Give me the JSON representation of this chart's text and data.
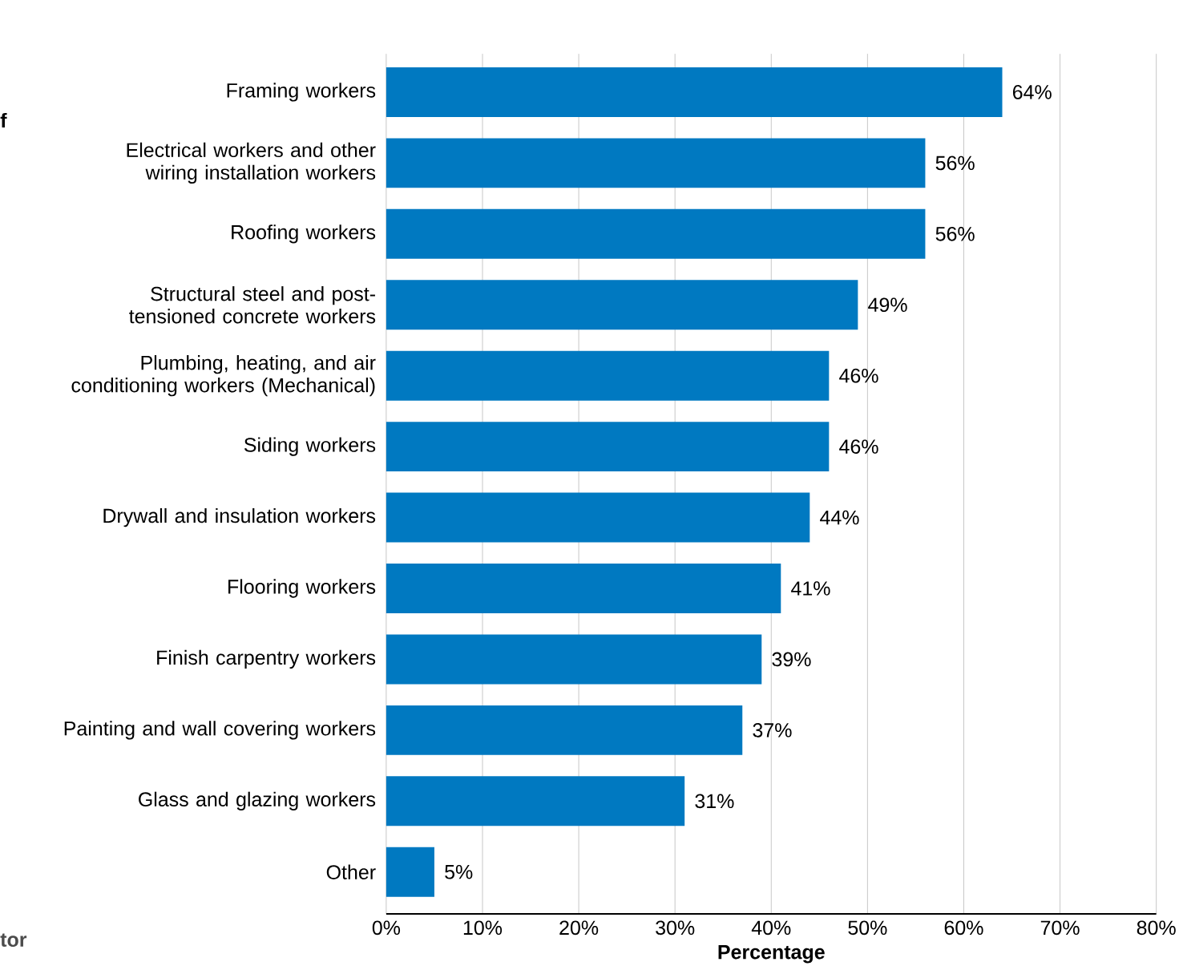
{
  "chart_data": {
    "type": "bar",
    "orientation": "horizontal",
    "xlabel": "Percentage",
    "categories": [
      "Framing workers",
      "Electrical workers and other wiring installation workers",
      "Roofing workers",
      "Structural steel and post-tensioned concrete workers",
      "Plumbing, heating, and air conditioning workers (Mechanical)",
      "Siding workers",
      "Drywall and insulation workers",
      "Flooring workers",
      "Finish carpentry workers",
      "Painting and wall covering workers",
      "Glass and glazing workers",
      "Other"
    ],
    "values": [
      64,
      56,
      56,
      49,
      46,
      46,
      44,
      41,
      39,
      37,
      31,
      5
    ],
    "value_labels": [
      "64%",
      "56%",
      "56%",
      "49%",
      "46%",
      "46%",
      "44%",
      "41%",
      "39%",
      "37%",
      "31%",
      "5%"
    ],
    "color": "#0079c1",
    "xlim": [
      0,
      80
    ],
    "xticks": [
      {
        "value": 0,
        "label": "0%"
      },
      {
        "value": 10,
        "label": "10%"
      },
      {
        "value": 20,
        "label": "20%"
      },
      {
        "value": 30,
        "label": "30%"
      },
      {
        "value": 40,
        "label": "40%"
      },
      {
        "value": 50,
        "label": "50%"
      },
      {
        "value": 60,
        "label": "60%"
      },
      {
        "value": 70,
        "label": "70%"
      },
      {
        "value": 80,
        "label": "80%"
      }
    ],
    "grid": "x",
    "annotations": [
      "f",
      "tor"
    ]
  }
}
